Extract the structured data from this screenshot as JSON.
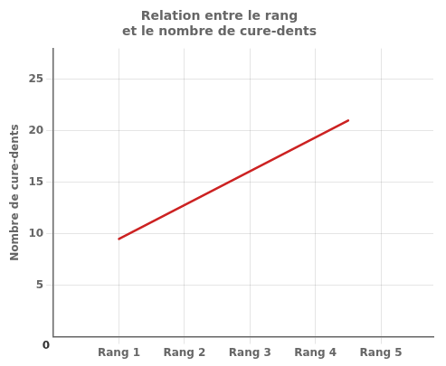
{
  "chart_data": {
    "type": "line",
    "title": "Relation entre le rang\net le nombre de cure-dents",
    "x": [
      1,
      4.5
    ],
    "values": [
      9.5,
      21
    ],
    "color": "#cc2222",
    "xlim": [
      0,
      5.8
    ],
    "ylim": [
      0,
      28
    ],
    "xticks": [
      {
        "value": 1,
        "label": "Rang 1"
      },
      {
        "value": 2,
        "label": "Rang 2"
      },
      {
        "value": 3,
        "label": "Rang 3"
      },
      {
        "value": 4,
        "label": "Rang 4"
      },
      {
        "value": 5,
        "label": "Rang 5"
      }
    ],
    "yticks": [
      5,
      10,
      15,
      20,
      25
    ],
    "ylabel": "Nombre de cure-dents",
    "annotations": [
      {
        "text": "0",
        "x": 0,
        "y": 0
      }
    ],
    "grid": true
  }
}
